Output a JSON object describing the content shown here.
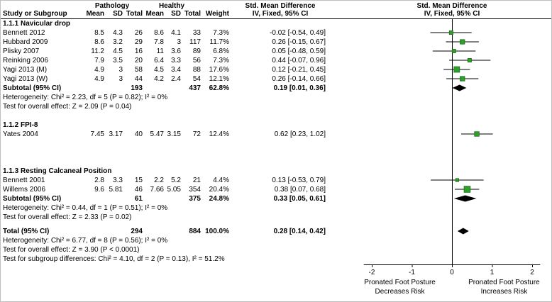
{
  "headers": {
    "pathology": "Pathology",
    "healthy": "Healthy",
    "smd": "Std. Mean Difference",
    "model": "IV, Fixed, 95% CI",
    "study": "Study or Subgroup",
    "mean": "Mean",
    "sd": "SD",
    "total": "Total",
    "weight": "Weight"
  },
  "colors": {
    "marker": "#2fa12b",
    "marker_border": "#1b6e1b",
    "diamond": "#000000",
    "axis": "#000000"
  },
  "chart_data": {
    "type": "forest",
    "effect_measure": "Std. Mean Difference",
    "model": "IV, Fixed, 95% CI",
    "groups": [
      {
        "title": "1.1.1 Navicular drop",
        "studies": [
          {
            "name": "Bennett 2012",
            "mean1": "8.5",
            "sd1": "4.3",
            "n1": "26",
            "mean2": "8.6",
            "sd2": "4.1",
            "n2": "33",
            "weight": "7.3%",
            "est": -0.02,
            "lo": -0.54,
            "hi": 0.49,
            "ci_text": "-0.02 [-0.54, 0.49]"
          },
          {
            "name": "Hubbard 2009",
            "mean1": "8.6",
            "sd1": "3.2",
            "n1": "29",
            "mean2": "7.8",
            "sd2": "3",
            "n2": "117",
            "weight": "11.7%",
            "est": 0.26,
            "lo": -0.15,
            "hi": 0.67,
            "ci_text": "0.26 [-0.15, 0.67]"
          },
          {
            "name": "Plisky 2007",
            "mean1": "11.2",
            "sd1": "4.5",
            "n1": "16",
            "mean2": "11",
            "sd2": "3.6",
            "n2": "89",
            "weight": "6.8%",
            "est": 0.05,
            "lo": -0.48,
            "hi": 0.59,
            "ci_text": "0.05 [-0.48, 0.59]"
          },
          {
            "name": "Reinking 2006",
            "mean1": "7.9",
            "sd1": "3.5",
            "n1": "20",
            "mean2": "6.4",
            "sd2": "3.3",
            "n2": "56",
            "weight": "7.3%",
            "est": 0.44,
            "lo": -0.07,
            "hi": 0.96,
            "ci_text": "0.44 [-0.07, 0.96]"
          },
          {
            "name": "Yagi 2013 (M)",
            "mean1": "4.9",
            "sd1": "3",
            "n1": "58",
            "mean2": "4.5",
            "sd2": "3.4",
            "n2": "88",
            "weight": "17.6%",
            "est": 0.12,
            "lo": -0.21,
            "hi": 0.45,
            "ci_text": "0.12 [-0.21, 0.45]"
          },
          {
            "name": "Yagi 2013 (W)",
            "mean1": "4.9",
            "sd1": "3",
            "n1": "44",
            "mean2": "4.2",
            "sd2": "2.4",
            "n2": "54",
            "weight": "12.1%",
            "est": 0.26,
            "lo": -0.14,
            "hi": 0.66,
            "ci_text": "0.26 [-0.14, 0.66]"
          }
        ],
        "subtotal": {
          "label": "Subtotal (95% CI)",
          "n1": "193",
          "n2": "437",
          "weight": "62.8%",
          "est": 0.19,
          "lo": 0.01,
          "hi": 0.36,
          "ci_text": "0.19 [0.01, 0.36]"
        },
        "heterogeneity": "Heterogeneity: Chi² = 2.23, df = 5 (P = 0.82); I² = 0%",
        "overall": "Test for overall effect: Z = 2.09 (P = 0.04)"
      },
      {
        "title": "1.1.2 FPI-8",
        "studies": [
          {
            "name": "Yates 2004",
            "mean1": "7.45",
            "sd1": "3.17",
            "n1": "40",
            "mean2": "5.47",
            "sd2": "3.15",
            "n2": "72",
            "weight": "12.4%",
            "est": 0.62,
            "lo": 0.23,
            "hi": 1.02,
            "ci_text": "0.62 [0.23, 1.02]"
          }
        ]
      },
      {
        "title": "1.1.3 Resting Calcaneal Position",
        "studies": [
          {
            "name": "Bennett 2001",
            "mean1": "2.8",
            "sd1": "3.3",
            "n1": "15",
            "mean2": "2.2",
            "sd2": "5.2",
            "n2": "21",
            "weight": "4.4%",
            "est": 0.13,
            "lo": -0.53,
            "hi": 0.79,
            "ci_text": "0.13 [-0.53, 0.79]"
          },
          {
            "name": "Willems 2006",
            "mean1": "9.6",
            "sd1": "5.81",
            "n1": "46",
            "mean2": "7.66",
            "sd2": "5.05",
            "n2": "354",
            "weight": "20.4%",
            "est": 0.38,
            "lo": 0.07,
            "hi": 0.68,
            "ci_text": "0.38 [0.07, 0.68]"
          }
        ],
        "subtotal": {
          "label": "Subtotal (95% CI)",
          "n1": "61",
          "n2": "375",
          "weight": "24.8%",
          "est": 0.33,
          "lo": 0.05,
          "hi": 0.61,
          "ci_text": "0.33 [0.05, 0.61]"
        },
        "heterogeneity": "Heterogeneity: Chi² = 0.44, df = 1 (P = 0.51); I² = 0%",
        "overall": "Test for overall effect: Z = 2.33 (P = 0.02)"
      }
    ],
    "total": {
      "label": "Total (95% CI)",
      "n1": "294",
      "n2": "884",
      "weight": "100.0%",
      "est": 0.28,
      "lo": 0.14,
      "hi": 0.42,
      "ci_text": "0.28 [0.14, 0.42]",
      "heterogeneity": "Heterogeneity: Chi² = 6.77, df = 8 (P = 0.56); I² = 0%",
      "overall": "Test for overall effect: Z = 3.90 (P < 0.0001)",
      "subgroup": "Test for subgroup differences: Chi² = 4.10, df = 2 (P = 0.13), I² = 51.2%"
    },
    "axis": {
      "ticks": [
        -2,
        -1,
        0,
        1,
        2
      ],
      "min": -2.2,
      "max": 2.2,
      "left_label": [
        "Pronated Foot Posture",
        "Decreases Risk"
      ],
      "right_label": [
        "Pronated Foot Posture",
        "Increases Risk"
      ]
    }
  }
}
